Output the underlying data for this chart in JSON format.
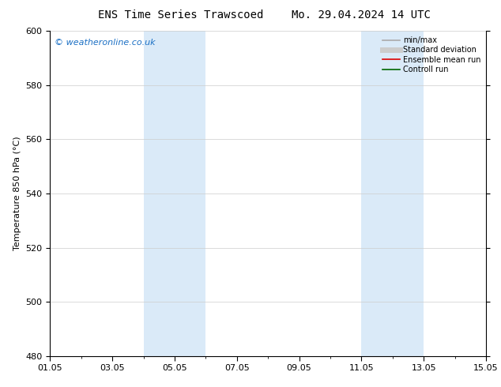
{
  "title_left": "ENS Time Series Trawscoed",
  "title_right": "Mo. 29.04.2024 14 UTC",
  "ylabel": "Temperature 850 hPa (°C)",
  "xlim": [
    0,
    14
  ],
  "ylim": [
    480,
    600
  ],
  "yticks": [
    480,
    500,
    520,
    540,
    560,
    580,
    600
  ],
  "xtick_positions": [
    0,
    2,
    4,
    6,
    8,
    10,
    12,
    14
  ],
  "xtick_labels": [
    "01.05",
    "03.05",
    "05.05",
    "07.05",
    "09.05",
    "11.05",
    "13.05",
    "15.05"
  ],
  "shaded_regions": [
    {
      "xmin": 3.0,
      "xmax": 5.0
    },
    {
      "xmin": 10.0,
      "xmax": 12.0
    }
  ],
  "shade_color": "#daeaf8",
  "watermark": "© weatheronline.co.uk",
  "watermark_color": "#1a6fc4",
  "legend_entries": [
    {
      "label": "min/max",
      "color": "#aaaaaa",
      "lw": 1.2
    },
    {
      "label": "Standard deviation",
      "color": "#cccccc",
      "lw": 5.0
    },
    {
      "label": "Ensemble mean run",
      "color": "#dd0000",
      "lw": 1.2
    },
    {
      "label": "Controll run",
      "color": "#006600",
      "lw": 1.2
    }
  ],
  "bg_color": "#ffffff",
  "grid_color": "#cccccc",
  "title_fontsize": 10,
  "tick_fontsize": 8,
  "ylabel_fontsize": 8,
  "watermark_fontsize": 8,
  "legend_fontsize": 7
}
